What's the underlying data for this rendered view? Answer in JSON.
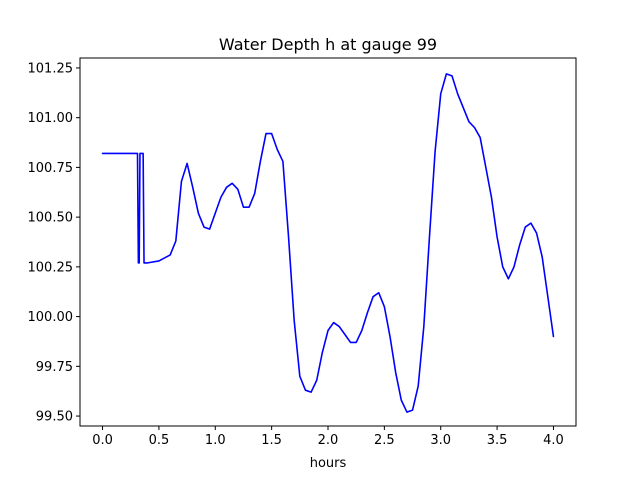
{
  "chart_data": {
    "type": "line",
    "title": "Water Depth h at gauge 99",
    "xlabel": "hours",
    "ylabel": "",
    "xlim": [
      -0.2,
      4.2
    ],
    "ylim": [
      99.45,
      101.3
    ],
    "xticks": [
      0.0,
      0.5,
      1.0,
      1.5,
      2.0,
      2.5,
      3.0,
      3.5,
      4.0
    ],
    "xtick_labels": [
      "0.0",
      "0.5",
      "1.0",
      "1.5",
      "2.0",
      "2.5",
      "3.0",
      "3.5",
      "4.0"
    ],
    "yticks": [
      99.5,
      99.75,
      100.0,
      100.25,
      100.5,
      100.75,
      101.0,
      101.25
    ],
    "ytick_labels": [
      "99.50",
      "99.75",
      "100.00",
      "100.25",
      "100.50",
      "100.75",
      "101.00",
      "101.25"
    ],
    "grid": false,
    "legend": false,
    "series": [
      {
        "color": "#0000ff",
        "x": [
          0.0,
          0.31,
          0.318,
          0.325,
          0.332,
          0.36,
          0.368,
          0.375,
          0.4,
          0.5,
          0.6,
          0.65,
          0.7,
          0.75,
          0.8,
          0.85,
          0.9,
          0.95,
          1.0,
          1.05,
          1.1,
          1.15,
          1.2,
          1.25,
          1.3,
          1.35,
          1.4,
          1.45,
          1.5,
          1.55,
          1.6,
          1.65,
          1.7,
          1.75,
          1.8,
          1.85,
          1.9,
          1.95,
          2.0,
          2.05,
          2.1,
          2.15,
          2.2,
          2.25,
          2.3,
          2.35,
          2.4,
          2.45,
          2.5,
          2.55,
          2.6,
          2.65,
          2.7,
          2.75,
          2.8,
          2.85,
          2.9,
          2.95,
          3.0,
          3.05,
          3.1,
          3.15,
          3.2,
          3.25,
          3.3,
          3.35,
          3.4,
          3.45,
          3.5,
          3.55,
          3.6,
          3.65,
          3.7,
          3.75,
          3.8,
          3.85,
          3.9,
          3.95,
          4.0
        ],
        "y": [
          100.82,
          100.82,
          100.27,
          100.27,
          100.82,
          100.82,
          100.27,
          100.27,
          100.27,
          100.28,
          100.31,
          100.38,
          100.68,
          100.77,
          100.65,
          100.52,
          100.45,
          100.44,
          100.52,
          100.6,
          100.65,
          100.67,
          100.64,
          100.55,
          100.55,
          100.62,
          100.78,
          100.92,
          100.92,
          100.84,
          100.78,
          100.4,
          99.98,
          99.7,
          99.63,
          99.62,
          99.68,
          99.82,
          99.93,
          99.97,
          99.95,
          99.91,
          99.87,
          99.87,
          99.93,
          100.02,
          100.1,
          100.12,
          100.05,
          99.9,
          99.72,
          99.58,
          99.52,
          99.53,
          99.65,
          99.95,
          100.4,
          100.83,
          101.12,
          101.22,
          101.21,
          101.12,
          101.05,
          100.98,
          100.95,
          100.9,
          100.75,
          100.6,
          100.4,
          100.25,
          100.19,
          100.25,
          100.36,
          100.45,
          100.47,
          100.42,
          100.3,
          100.1,
          99.9
        ]
      }
    ]
  }
}
